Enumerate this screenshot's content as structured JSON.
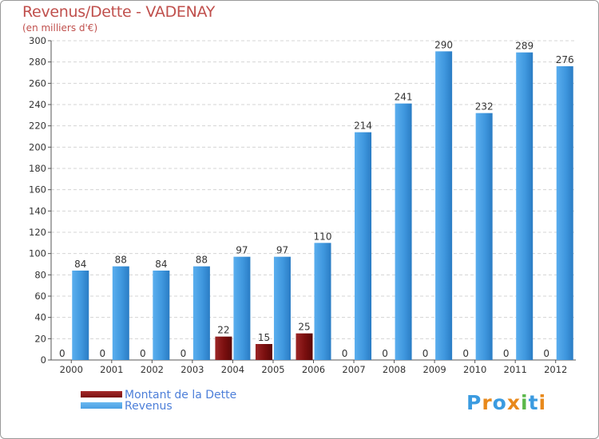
{
  "chart_data": {
    "type": "bar",
    "title": "Revenus/Dette - VADENAY",
    "subtitle": "(en milliers d'€)",
    "categories": [
      "2000",
      "2001",
      "2002",
      "2003",
      "2004",
      "2005",
      "2006",
      "2007",
      "2008",
      "2009",
      "2010",
      "2011",
      "2012"
    ],
    "series": [
      {
        "name": "Montant de la Dette",
        "color": "#7a0f0f",
        "values": [
          0,
          0,
          0,
          0,
          22,
          15,
          25,
          0,
          0,
          0,
          0,
          0,
          0
        ]
      },
      {
        "name": "Revenus",
        "color": "#4a9fe3",
        "values": [
          84,
          88,
          84,
          88,
          97,
          97,
          110,
          214,
          241,
          290,
          232,
          289,
          276
        ]
      }
    ],
    "ylim": [
      0,
      300
    ],
    "yticks": [
      0,
      20,
      40,
      60,
      80,
      100,
      120,
      140,
      160,
      180,
      200,
      220,
      240,
      260,
      280,
      300
    ],
    "grid": true,
    "legend_position": "bottom-left"
  },
  "logo": {
    "text": "Proxiti",
    "letters": [
      {
        "char": "P",
        "color": "#3b9be0"
      },
      {
        "char": "r",
        "color": "#e8891c"
      },
      {
        "char": "o",
        "color": "#3b9be0"
      },
      {
        "char": "x",
        "color": "#e8891c"
      },
      {
        "char": "i",
        "color": "#5bb84a"
      },
      {
        "char": "t",
        "color": "#3b9be0"
      },
      {
        "char": "i",
        "color": "#e8891c"
      }
    ]
  }
}
